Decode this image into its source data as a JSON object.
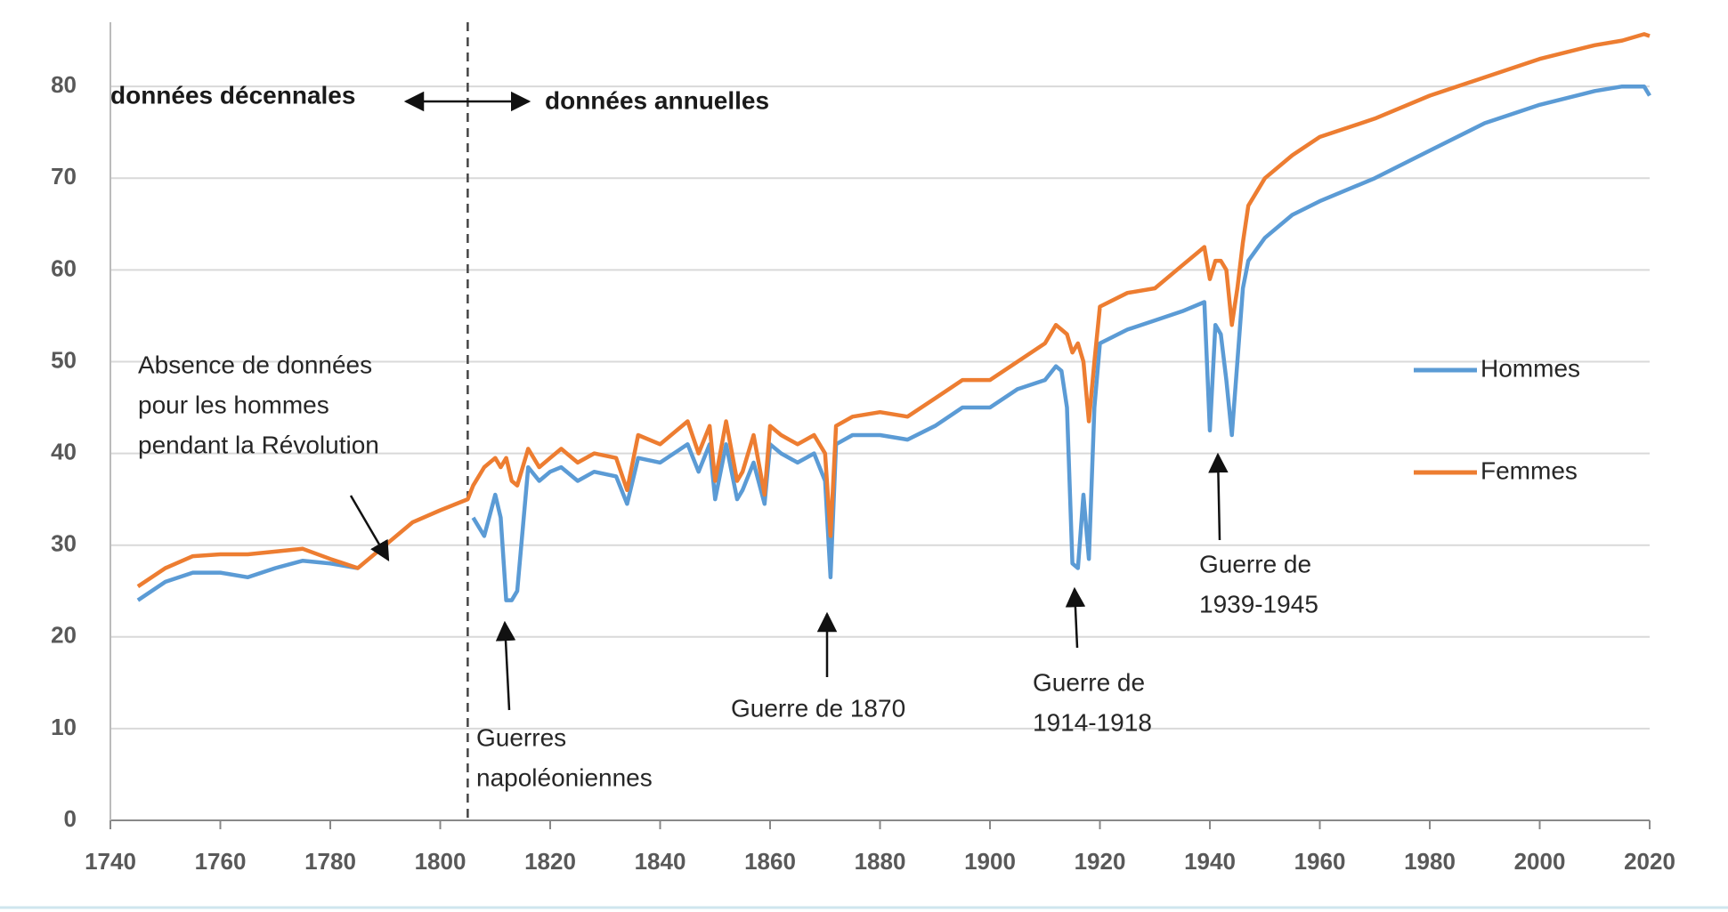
{
  "chart_data": {
    "type": "line",
    "x": [
      1745,
      1750,
      1755,
      1760,
      1765,
      1770,
      1775,
      1780,
      1785,
      1790,
      1795,
      1800,
      1805,
      1806,
      1808,
      1810,
      1811,
      1812,
      1813,
      1814,
      1816,
      1818,
      1820,
      1822,
      1825,
      1828,
      1832,
      1834,
      1836,
      1840,
      1845,
      1847,
      1849,
      1850,
      1852,
      1854,
      1855,
      1857,
      1859,
      1860,
      1862,
      1865,
      1868,
      1870,
      1871,
      1872,
      1875,
      1880,
      1885,
      1890,
      1895,
      1900,
      1905,
      1910,
      1912,
      1913,
      1914,
      1915,
      1916,
      1917,
      1918,
      1919,
      1920,
      1925,
      1930,
      1935,
      1939,
      1940,
      1941,
      1942,
      1943,
      1944,
      1945,
      1946,
      1947,
      1950,
      1955,
      1960,
      1970,
      1980,
      1990,
      2000,
      2010,
      2015,
      2019,
      2020
    ],
    "series": [
      {
        "name": "Hommes",
        "color": "#5b9bd5",
        "values": [
          24,
          26,
          27,
          27,
          26.5,
          27.5,
          28.3,
          28,
          27.5,
          null,
          null,
          null,
          null,
          33,
          31,
          35.5,
          33,
          24,
          24,
          25,
          38.5,
          37,
          38,
          38.5,
          37,
          38,
          37.5,
          34.5,
          39.5,
          39,
          41,
          38,
          41,
          35,
          41,
          35,
          36,
          39,
          34.5,
          41,
          40,
          39,
          40,
          37,
          26.5,
          41,
          42,
          42,
          41.5,
          43,
          45,
          45,
          47,
          48,
          49.5,
          49,
          45,
          28,
          27.5,
          35.5,
          28.5,
          45,
          52,
          53.5,
          54.5,
          55.5,
          56.5,
          42.5,
          54,
          53,
          48,
          42,
          50,
          58,
          61,
          63.5,
          66,
          67.5,
          70,
          73,
          76,
          78,
          79.5,
          80,
          80,
          79
        ]
      },
      {
        "name": "Femmes",
        "color": "#ed7d31",
        "values": [
          25.5,
          27.5,
          28.8,
          29,
          29,
          29.3,
          29.6,
          28.5,
          27.5,
          30,
          32.5,
          33.8,
          35,
          36.5,
          38.5,
          39.5,
          38.5,
          39.5,
          37,
          36.5,
          40.5,
          38.5,
          39.5,
          40.5,
          39,
          40,
          39.5,
          36,
          42,
          41,
          43.5,
          40,
          43,
          37,
          43.5,
          37,
          38,
          42,
          35.5,
          43,
          42,
          41,
          42,
          40,
          31,
          43,
          44,
          44.5,
          44,
          46,
          48,
          48,
          50,
          52,
          54,
          53.5,
          53,
          51,
          52,
          50,
          43.5,
          50,
          56,
          57.5,
          58,
          60.5,
          62.5,
          59,
          61,
          61,
          60,
          54,
          58,
          63,
          67,
          70,
          72.5,
          74.5,
          76.5,
          79,
          81,
          83,
          84.5,
          85,
          85.7,
          85.5
        ]
      }
    ],
    "xlim": [
      1740,
      2020
    ],
    "xticks": [
      1740,
      1760,
      1780,
      1800,
      1820,
      1840,
      1860,
      1880,
      1900,
      1920,
      1940,
      1960,
      1980,
      2000,
      2020
    ],
    "ylim": [
      0,
      87
    ],
    "yticks": [
      0,
      10,
      20,
      30,
      40,
      50,
      60,
      70,
      80
    ],
    "grid": true,
    "legend": "right",
    "divider_x": 1805,
    "period_labels": [
      "données décennales",
      "données annuelles"
    ],
    "annotations": [
      {
        "lines": [
          "Absence de données",
          "pour les hommes",
          "pendant la Révolution"
        ]
      },
      {
        "lines": [
          "Guerres",
          "napoléoniennes"
        ]
      },
      {
        "lines": [
          "Guerre de 1870"
        ]
      },
      {
        "lines": [
          "Guerre de",
          "1914-1918"
        ]
      },
      {
        "lines": [
          "Guerre de",
          "1939-1945"
        ]
      }
    ]
  }
}
